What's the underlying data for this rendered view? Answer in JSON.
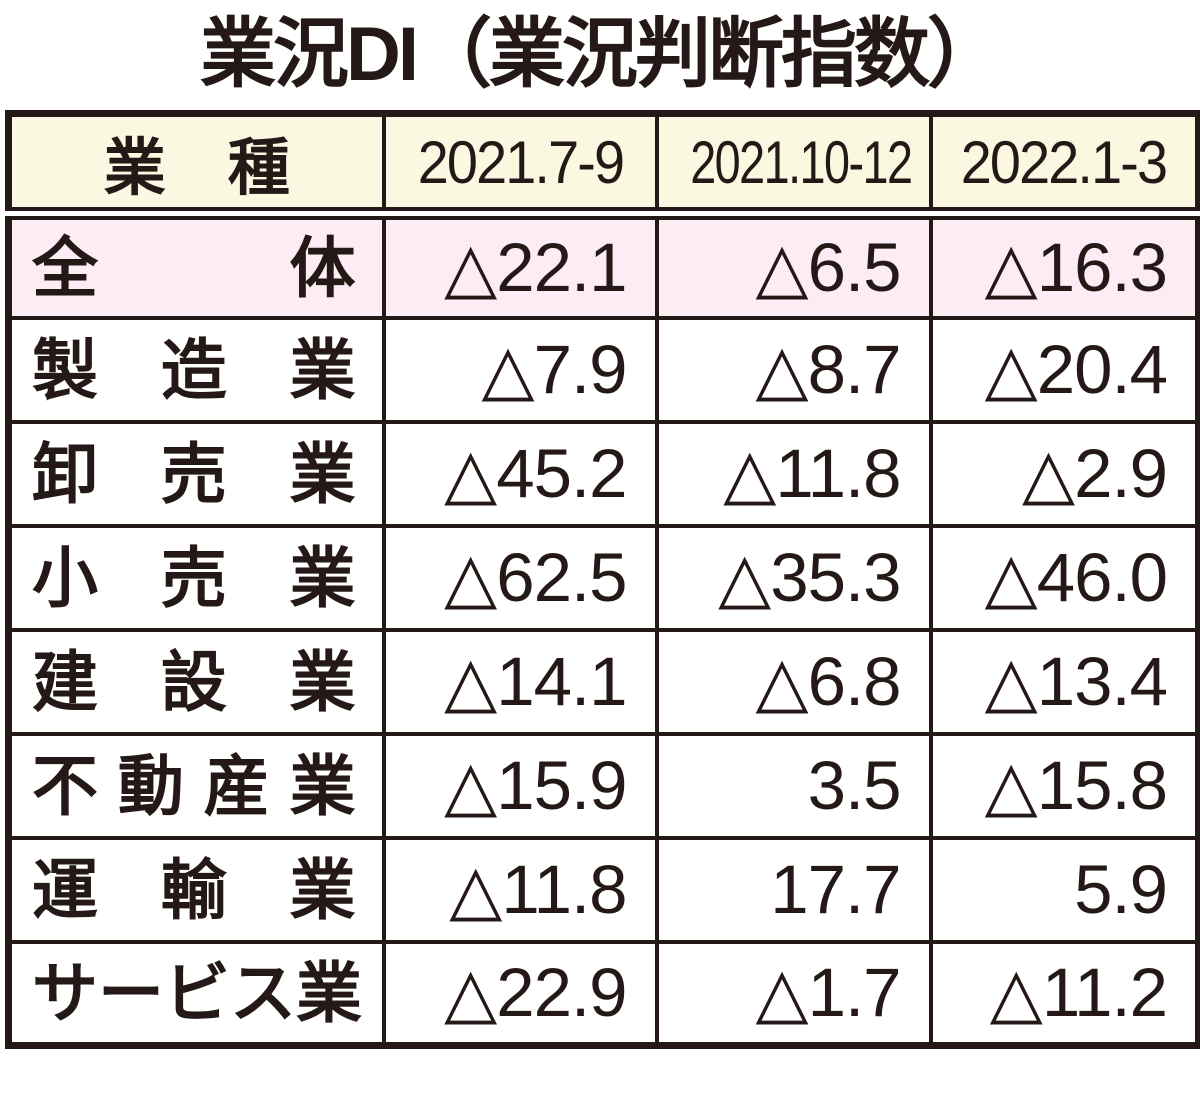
{
  "title": "業況DI（業況判断指数）",
  "colors": {
    "ink": "#241916",
    "header_bg": "#fbf8e1",
    "highlight_row_bg": "#fcecf3",
    "body_bg": "#ffffff"
  },
  "table": {
    "corner_label": "業　種",
    "columns": [
      "2021.7-9",
      "2021.10-12",
      "2022.1-3"
    ],
    "negative_mark": "△",
    "rows": [
      {
        "label": "全体",
        "values": [
          "△22.1",
          "△6.5",
          "△16.3"
        ],
        "highlight": true
      },
      {
        "label": "製造業",
        "values": [
          "△7.9",
          "△8.7",
          "△20.4"
        ],
        "highlight": false
      },
      {
        "label": "卸売業",
        "values": [
          "△45.2",
          "△11.8",
          "△2.9"
        ],
        "highlight": false
      },
      {
        "label": "小売業",
        "values": [
          "△62.5",
          "△35.3",
          "△46.0"
        ],
        "highlight": false
      },
      {
        "label": "建設業",
        "values": [
          "△14.1",
          "△6.8",
          "△13.4"
        ],
        "highlight": false
      },
      {
        "label": "不動産業",
        "values": [
          "△15.9",
          "3.5",
          "△15.8"
        ],
        "highlight": false
      },
      {
        "label": "運輸業",
        "values": [
          "△11.8",
          "17.7",
          "5.9"
        ],
        "highlight": false
      },
      {
        "label": "サービス業",
        "values": [
          "△22.9",
          "△1.7",
          "△11.2"
        ],
        "highlight": false
      }
    ]
  },
  "chart_data": {
    "type": "table",
    "title": "業況DI（業況判断指数）",
    "categories": [
      "2021.7-9",
      "2021.10-12",
      "2022.1-3"
    ],
    "note": "△ denotes a negative value",
    "series": [
      {
        "name": "全体",
        "values": [
          -22.1,
          -6.5,
          -16.3
        ]
      },
      {
        "name": "製造業",
        "values": [
          -7.9,
          -8.7,
          -20.4
        ]
      },
      {
        "name": "卸売業",
        "values": [
          -45.2,
          -11.8,
          -2.9
        ]
      },
      {
        "name": "小売業",
        "values": [
          -62.5,
          -35.3,
          -46.0
        ]
      },
      {
        "name": "建設業",
        "values": [
          -14.1,
          -6.8,
          -13.4
        ]
      },
      {
        "name": "不動産業",
        "values": [
          -15.9,
          3.5,
          -15.8
        ]
      },
      {
        "name": "運輸業",
        "values": [
          -11.8,
          17.7,
          5.9
        ]
      },
      {
        "name": "サービス業",
        "values": [
          -22.9,
          -1.7,
          -11.2
        ]
      }
    ]
  }
}
